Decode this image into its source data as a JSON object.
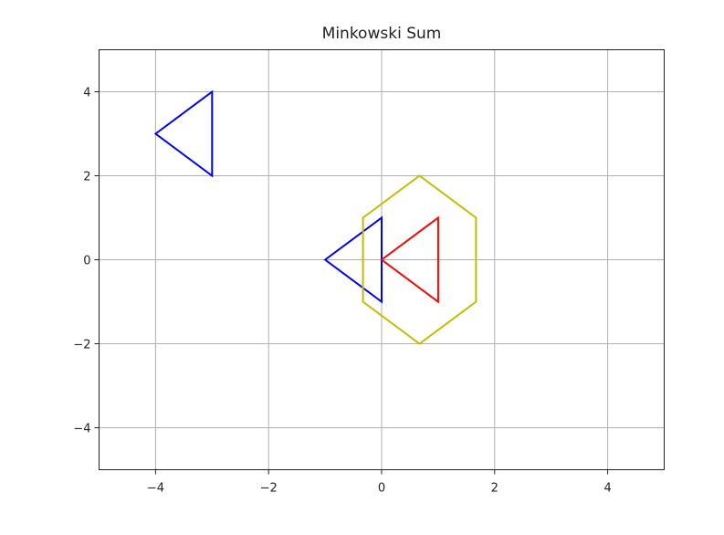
{
  "chart_data": {
    "type": "line",
    "title": "Minkowski Sum",
    "xlabel": "",
    "ylabel": "",
    "xlim": [
      -5,
      5
    ],
    "ylim": [
      -5,
      5
    ],
    "xticks": [
      -4,
      -2,
      0,
      2,
      4
    ],
    "yticks": [
      -4,
      -2,
      0,
      2,
      4
    ],
    "xtick_labels": [
      "−4",
      "−2",
      "0",
      "2",
      "4"
    ],
    "ytick_labels": [
      "−4",
      "−2",
      "0",
      "2",
      "4"
    ],
    "grid": true,
    "series": [
      {
        "color": "#0000ff",
        "closed": true,
        "x": [
          -4,
          -3,
          -3
        ],
        "y": [
          3,
          4,
          2
        ]
      },
      {
        "color": "#0000ff",
        "closed": true,
        "x": [
          -1,
          0,
          0
        ],
        "y": [
          0,
          1,
          -1
        ]
      },
      {
        "color": "#ff0000",
        "closed": true,
        "x": [
          0,
          1,
          1
        ],
        "y": [
          0,
          1,
          -1
        ]
      },
      {
        "color": "#bfbf00",
        "closed": true,
        "x": [
          -0.33,
          0.67,
          1.67,
          1.67,
          0.67,
          -0.33
        ],
        "y": [
          1,
          2,
          1,
          -1,
          -2,
          -1
        ]
      }
    ]
  }
}
